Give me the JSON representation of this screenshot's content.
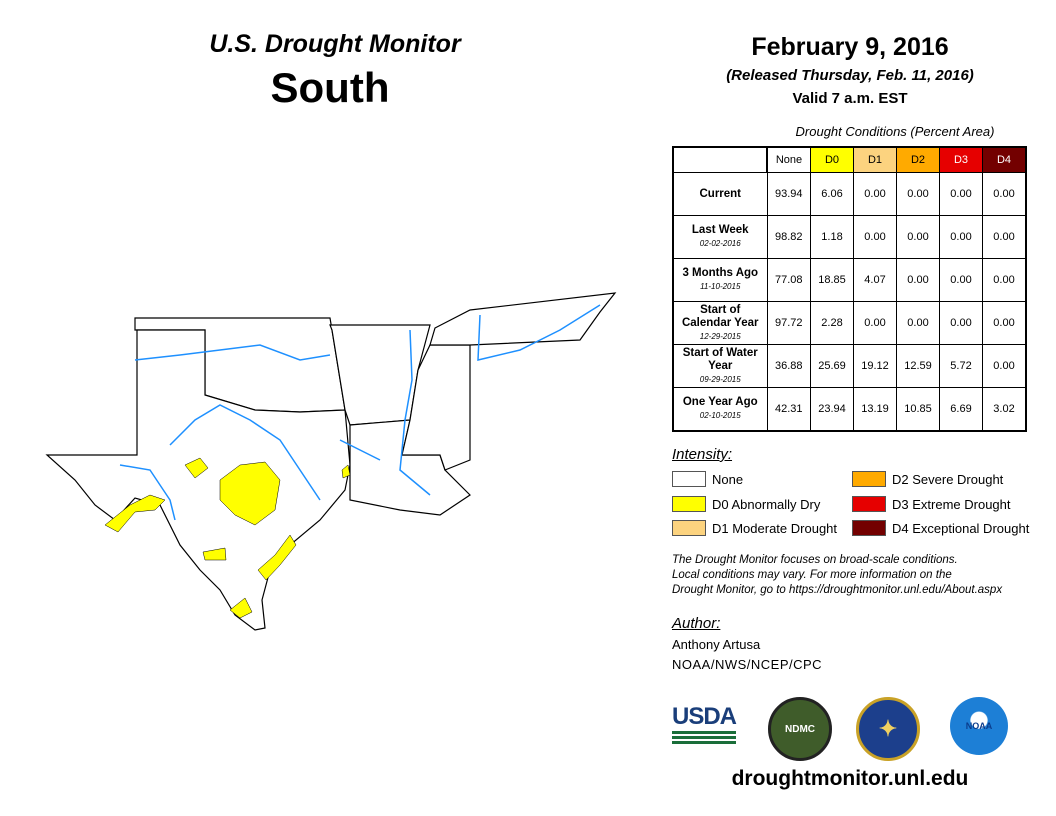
{
  "header": {
    "subtitle": "U.S. Drought Monitor",
    "region": "South",
    "date": "February 9, 2016",
    "released": "(Released Thursday, Feb. 11, 2016)",
    "valid": "Valid 7 a.m. EST"
  },
  "table": {
    "caption": "Drought Conditions (Percent Area)",
    "columns": [
      "None",
      "D0",
      "D1",
      "D2",
      "D3",
      "D4"
    ],
    "column_colors": [
      "#ffffff",
      "#ffff00",
      "#fcd37f",
      "#ffaa00",
      "#e60000",
      "#730000"
    ],
    "rows": [
      {
        "label": "Current",
        "date": "",
        "values": [
          "93.94",
          "6.06",
          "0.00",
          "0.00",
          "0.00",
          "0.00"
        ]
      },
      {
        "label": "Last Week",
        "date": "02-02-2016",
        "values": [
          "98.82",
          "1.18",
          "0.00",
          "0.00",
          "0.00",
          "0.00"
        ]
      },
      {
        "label": "3 Months Ago",
        "date": "11-10-2015",
        "values": [
          "77.08",
          "18.85",
          "4.07",
          "0.00",
          "0.00",
          "0.00"
        ]
      },
      {
        "label": "Start of Calendar Year",
        "date": "12-29-2015",
        "values": [
          "97.72",
          "2.28",
          "0.00",
          "0.00",
          "0.00",
          "0.00"
        ]
      },
      {
        "label": "Start of Water Year",
        "date": "09-29-2015",
        "values": [
          "36.88",
          "25.69",
          "19.12",
          "12.59",
          "5.72",
          "0.00"
        ]
      },
      {
        "label": "One Year Ago",
        "date": "02-10-2015",
        "values": [
          "42.31",
          "23.94",
          "13.19",
          "10.85",
          "6.69",
          "3.02"
        ]
      }
    ]
  },
  "legend": {
    "title": "Intensity:",
    "items": [
      {
        "label": "None",
        "color": "#ffffff"
      },
      {
        "label": "D0 Abnormally Dry",
        "color": "#ffff00"
      },
      {
        "label": "D1 Moderate Drought",
        "color": "#fcd37f"
      },
      {
        "label": "D2 Severe Drought",
        "color": "#ffaa00"
      },
      {
        "label": "D3 Extreme Drought",
        "color": "#e60000"
      },
      {
        "label": "D4 Exceptional Drought",
        "color": "#730000"
      }
    ]
  },
  "note": [
    "The Drought Monitor focuses on broad-scale conditions.",
    "Local conditions may vary. For more information on the",
    "Drought Monitor, go to https://droughtmonitor.unl.edu/About.aspx"
  ],
  "author": {
    "title": "Author:",
    "name": "Anthony Artusa",
    "org": "NOAA/NWS/NCEP/CPC"
  },
  "logos": {
    "usda": "USDA",
    "ndmc": "NDMC",
    "noaa": "NOAA"
  },
  "url": "droughtmonitor.unl.edu"
}
